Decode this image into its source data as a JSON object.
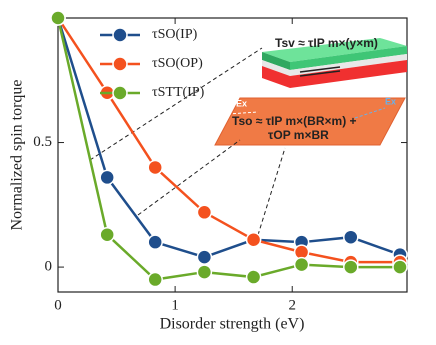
{
  "chart_data": {
    "type": "line",
    "x_label": "Disorder strength (eV)",
    "y_label": "Normalized spin torque",
    "x": [
      0,
      0.42,
      0.83,
      1.25,
      1.67,
      2.08,
      2.5,
      2.92
    ],
    "series": [
      {
        "name": "τSO(IP)",
        "color": "#1f4e8c",
        "values": [
          1.0,
          0.36,
          0.1,
          0.04,
          0.11,
          0.1,
          0.12,
          0.05
        ]
      },
      {
        "name": "τSO(OP)",
        "color": "#f4511e",
        "values": [
          1.0,
          0.7,
          0.4,
          0.22,
          0.11,
          0.06,
          0.02,
          0.02
        ]
      },
      {
        "name": "τSTT(IP)",
        "color": "#6aaa2a",
        "values": [
          1.0,
          0.13,
          -0.05,
          -0.02,
          -0.04,
          0.01,
          0.0,
          0.0
        ]
      }
    ],
    "xlim": [
      0,
      2.98
    ],
    "ylim": [
      -0.1,
      1.0
    ],
    "xticks": [
      0,
      1,
      2
    ],
    "yticks": [
      0,
      0.5
    ],
    "annotations": [
      "Tsv ≈ τIP m×(y×m)",
      "Tso ≈ τIP m×(BR×m) +",
      "τOP m×BR",
      "Ex",
      "Ex"
    ]
  }
}
